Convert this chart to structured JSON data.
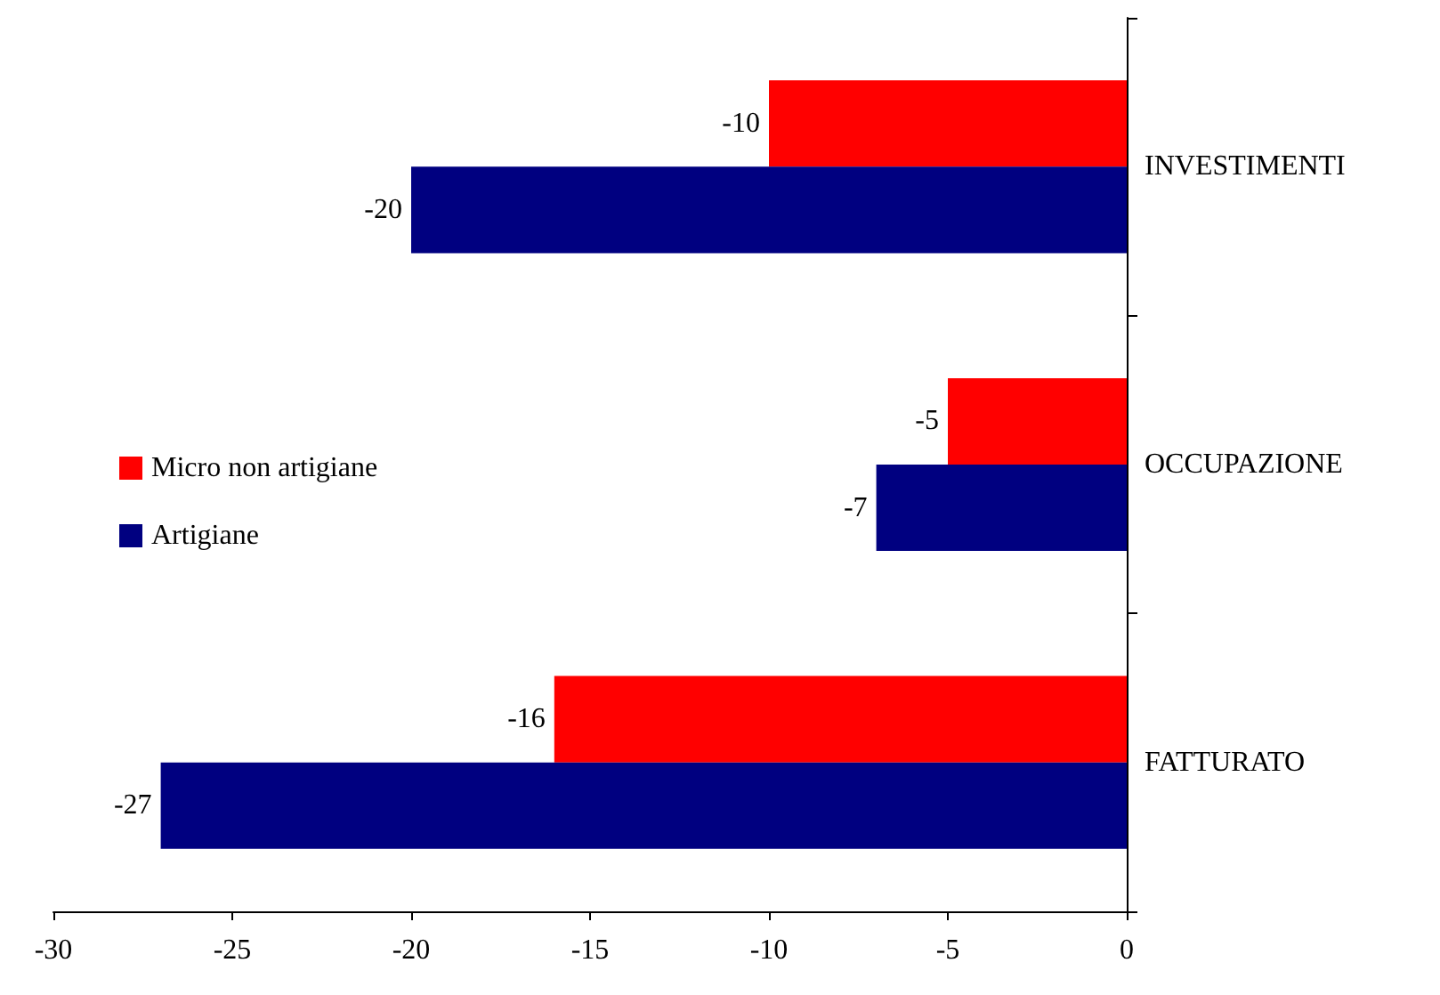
{
  "chart_data": {
    "type": "bar",
    "orientation": "horizontal",
    "categories": [
      "INVESTIMENTI",
      "OCCUPAZIONE",
      "FATTURATO"
    ],
    "series": [
      {
        "name": "Micro non artigiane",
        "color": "#ff0000",
        "values": [
          -10,
          -5,
          -16
        ]
      },
      {
        "name": "Artigiane",
        "color": "#000080",
        "values": [
          -20,
          -7,
          -27
        ]
      }
    ],
    "xlim": [
      -30,
      0
    ],
    "xticks": [
      -30,
      -25,
      -20,
      -15,
      -10,
      -5,
      0
    ],
    "data_labels": true,
    "grid": false,
    "legend": "left"
  }
}
